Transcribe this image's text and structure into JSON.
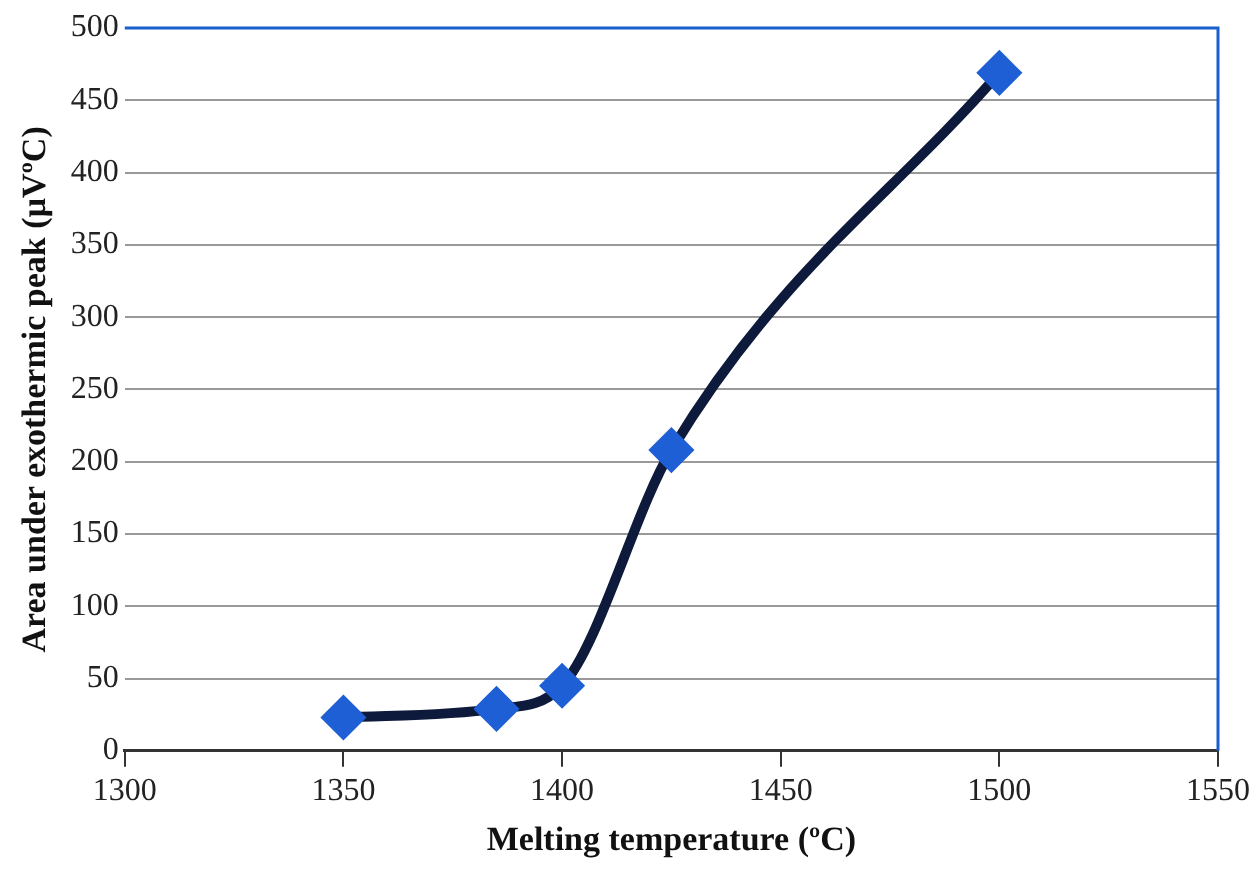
{
  "chart_data": {
    "type": "line",
    "xlabel": "Melting temperature (ºC)",
    "ylabel": "Area under exothermic peak (µVºC)",
    "x": [
      1350,
      1385,
      1400,
      1425,
      1500
    ],
    "series": [
      {
        "color": "#0e1a3c",
        "values": [
          23,
          29,
          45,
          208,
          469
        ]
      }
    ],
    "xlim": [
      1300,
      1550
    ],
    "xticks": [
      1300,
      1350,
      1400,
      1450,
      1500,
      1550
    ],
    "ylim": [
      0,
      500
    ],
    "yticks": [
      0,
      50,
      100,
      150,
      200,
      250,
      300,
      350,
      400,
      450,
      500
    ],
    "grid": "y",
    "legend": false,
    "marker": "diamond",
    "line_style": "solid"
  }
}
